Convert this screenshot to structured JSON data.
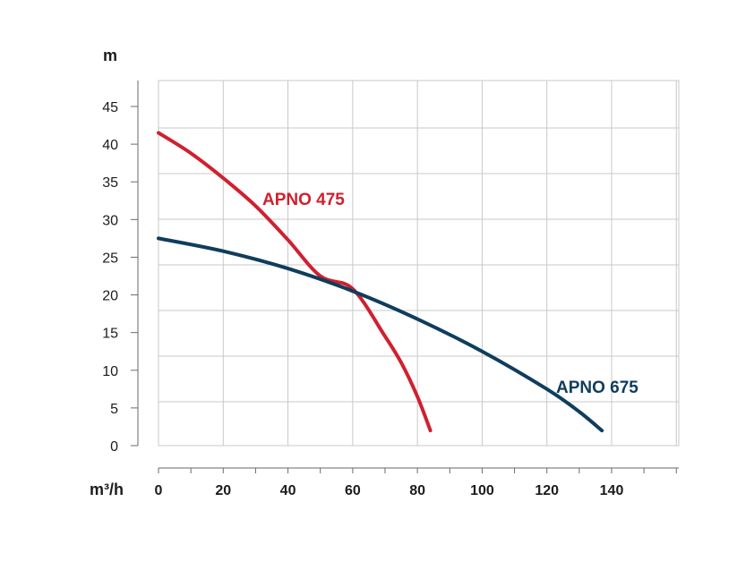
{
  "chart_data": {
    "type": "line",
    "xlabel": "m³/h",
    "ylabel": "m",
    "xlim": [
      0,
      160
    ],
    "ylim": [
      0,
      48
    ],
    "x_ticks": [
      0,
      20,
      40,
      60,
      80,
      100,
      120,
      140
    ],
    "y_ticks": [
      0,
      5,
      10,
      15,
      20,
      25,
      30,
      35,
      40,
      45
    ],
    "grid": true,
    "legend": "inline labels",
    "series": [
      {
        "name": "APNO 475",
        "color": "#d0202f",
        "x": [
          0,
          10,
          20,
          30,
          40,
          50,
          60,
          70,
          75,
          80,
          84
        ],
        "y": [
          41.5,
          38.8,
          35.5,
          31.8,
          27.3,
          22.5,
          20.8,
          14.5,
          11,
          6.5,
          2
        ]
      },
      {
        "name": "APNO 675",
        "color": "#0f3d5c",
        "x": [
          0,
          20,
          40,
          60,
          80,
          100,
          120,
          130,
          137
        ],
        "y": [
          27.5,
          25.8,
          23.5,
          20.5,
          16.8,
          12.5,
          7.5,
          4.5,
          2
        ]
      }
    ]
  }
}
